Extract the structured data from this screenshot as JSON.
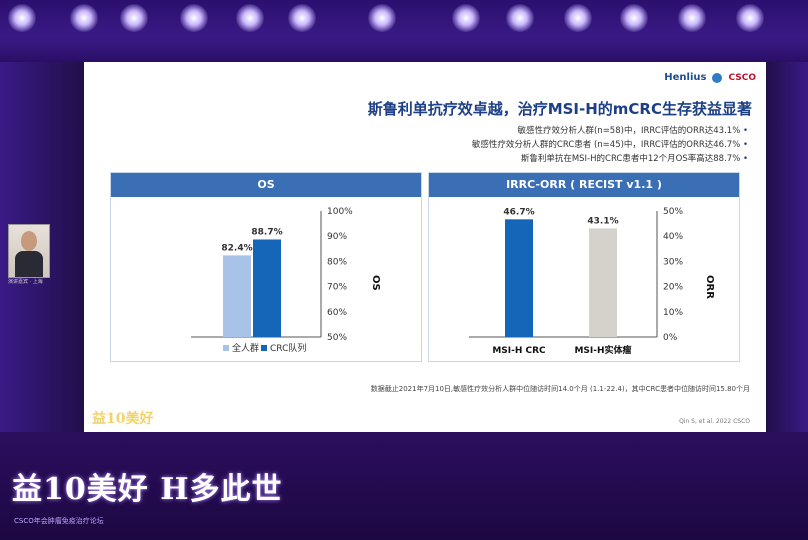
{
  "slide": {
    "brand_text": "Henlius",
    "brand_logo_text": "CSCO",
    "title": "斯鲁利单抗疗效卓越，治疗MSI-H的mCRC生存获益显著",
    "bullets": [
      "敏感性疗效分析人群(n=58)中，IRRC评估的ORR达43.1%",
      "敏感性疗效分析人群的CRC患者 (n=45)中，IRRC评估的ORR达46.7%",
      "斯鲁利单抗在MSI-H的CRC患者中12个月OS率高达88.7%"
    ],
    "footnote": "数据截止2021年7月10日,敏感性疗效分析人群中位随访时间14.0个月 (1.1-22.4)，其中CRC患者中位随访时间15.80个月",
    "citation": "Qin S, et al. 2022 CSCO"
  },
  "speaker": {
    "label": "演讲嘉宾 · 上海"
  },
  "event_logo": {
    "main": "益10美好 H多此世",
    "sub": "CSCO年会肿瘤免疫治疗论坛",
    "small": "益10美好"
  },
  "colors": {
    "accent": "#1c3f86",
    "panel_head": "#3a6fb5",
    "bar_dark": "#1566b8",
    "bar_light": "#a9c3e8",
    "bar_gray": "#d5d2cc"
  },
  "chart_data": [
    {
      "type": "bar",
      "title": "IRRC-ORR ( RECIST v1.1 )",
      "ylabel": "ORR",
      "ylim": [
        0,
        50
      ],
      "yticks": [
        "0%",
        "10%",
        "20%",
        "30%",
        "40%",
        "50%"
      ],
      "categories": [
        "MSI-H实体瘤",
        "MSI-H CRC"
      ],
      "values": [
        43.1,
        46.7
      ],
      "value_labels": [
        "43.1%",
        "46.7%"
      ]
    },
    {
      "type": "bar",
      "title": "OS",
      "ylabel": "OS",
      "ylim": [
        50,
        100
      ],
      "yticks": [
        "50%",
        "60%",
        "70%",
        "80%",
        "90%",
        "100%"
      ],
      "series": [
        {
          "name": "全人群",
          "values": [
            82.4
          ]
        },
        {
          "name": "CRC队列",
          "values": [
            88.7
          ]
        }
      ],
      "value_labels": [
        "82.4%",
        "88.7%"
      ]
    }
  ]
}
